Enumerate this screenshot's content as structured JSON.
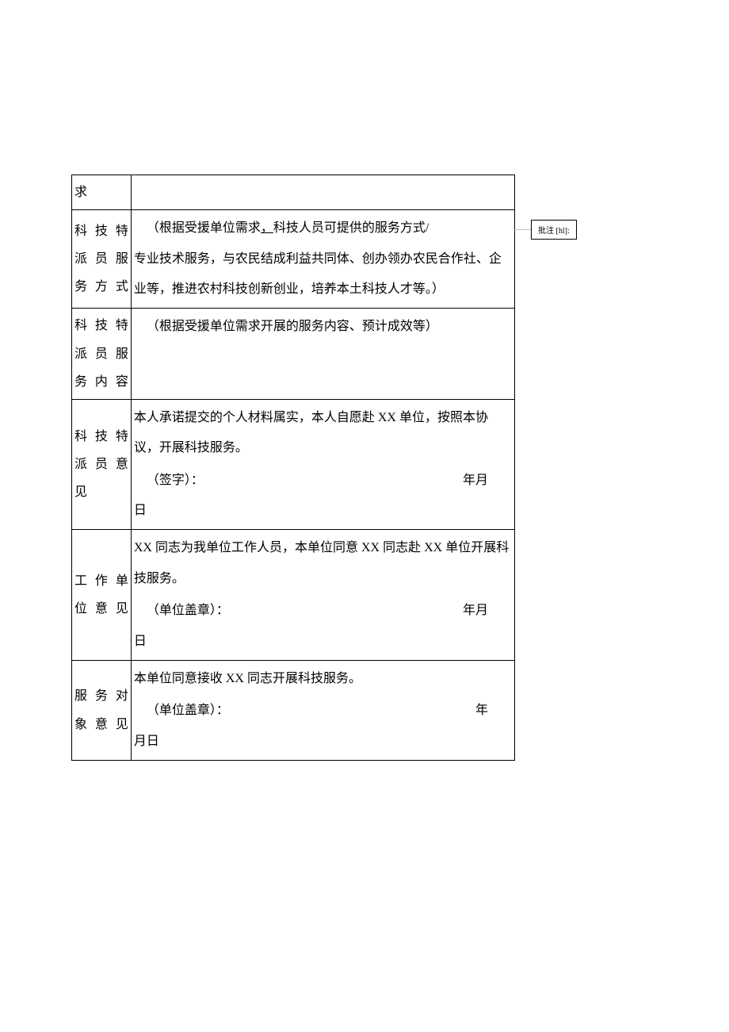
{
  "table": {
    "rows": [
      {
        "label": "求",
        "content": ""
      },
      {
        "label": "科 技 特派 员 服务方式",
        "content_line1": "（根据受援单位需求",
        "content_line1_underline": "，",
        "content_line1_rest": "科技人员可提供的服务方式/",
        "content_line2": "专业技术服务，与农民结成利益共同体、创办领办农民合作社、企业等，推进农村科技创新创业，培养本土科技人才等。）"
      },
      {
        "label": "科 技 特派 员 服务内容",
        "content": "（根据受援单位需求开展的服务内容、预计成效等）"
      },
      {
        "label": "科 技 特派 员 意见",
        "content_line1": "本人承诺提交的个人材料属实，本人自愿赴 XX 单位，按照本协议，开展科技服务。",
        "signature_label": "（签字）：",
        "date_label": "年月",
        "date_suffix": "日"
      },
      {
        "label": "工 作 单位意见",
        "content_line1": "XX 同志为我单位工作人员，本单位同意 XX 同志赴 XX 单位开展科技服务。",
        "signature_label": "（单位盖章）：",
        "date_label": "年月",
        "date_suffix": "日"
      },
      {
        "label": "服 务 对象意见",
        "content_line1": "本单位同意接收 XX 同志开展科技服务。",
        "signature_label": "（单位盖章）：",
        "date_label": "年",
        "date_suffix": "月日"
      }
    ]
  },
  "comment": {
    "label": "批注 [hl]:"
  },
  "colors": {
    "border": "#000000",
    "text": "#000000",
    "background": "#ffffff"
  },
  "fonts": {
    "body_size": 16,
    "comment_size": 10
  }
}
